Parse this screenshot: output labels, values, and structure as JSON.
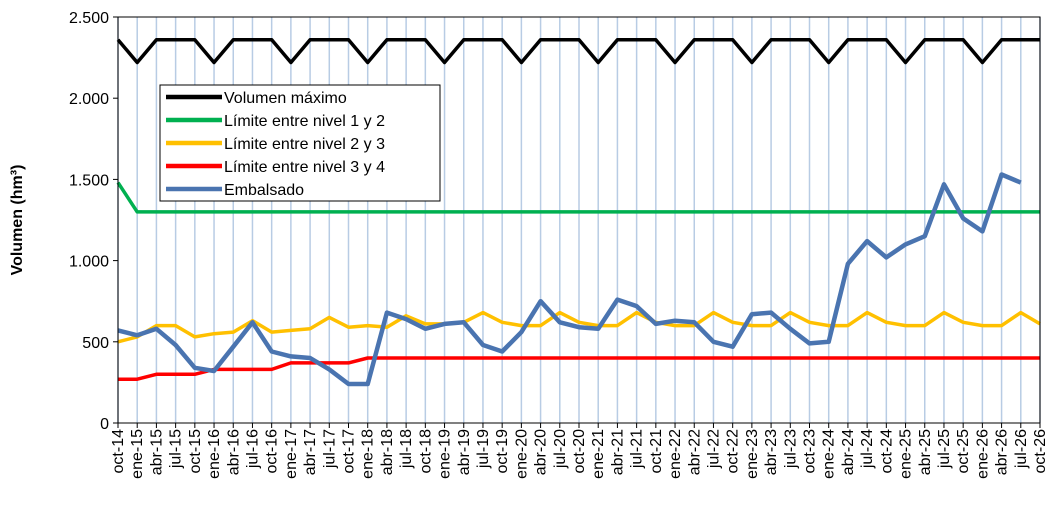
{
  "chart_data": {
    "type": "line",
    "y_label": "Volumen (hm³)",
    "categories": [
      "oct-14",
      "ene-15",
      "abr-15",
      "jul-15",
      "oct-15",
      "ene-16",
      "abr-16",
      "jul-16",
      "oct-16",
      "ene-17",
      "abr-17",
      "jul-17",
      "oct-17",
      "ene-18",
      "abr-18",
      "jul-18",
      "oct-18",
      "ene-19",
      "abr-19",
      "jul-19",
      "oct-19",
      "ene-20",
      "abr-20",
      "jul-20",
      "oct-20",
      "ene-21",
      "abr-21",
      "jul-21",
      "oct-21",
      "ene-22",
      "abr-22",
      "jul-22",
      "oct-22",
      "ene-23",
      "abr-23",
      "jul-23",
      "oct-23",
      "ene-24",
      "abr-24",
      "jul-24",
      "oct-24",
      "ene-25",
      "abr-25",
      "jul-25",
      "oct-25",
      "ene-26",
      "abr-26",
      "jul-26",
      "oct-26"
    ],
    "series": [
      {
        "name": "Volumen máximo",
        "color": "#000000",
        "values": [
          2360,
          2220,
          2360,
          2360,
          2360,
          2220,
          2360,
          2360,
          2360,
          2220,
          2360,
          2360,
          2360,
          2220,
          2360,
          2360,
          2360,
          2220,
          2360,
          2360,
          2360,
          2220,
          2360,
          2360,
          2360,
          2220,
          2360,
          2360,
          2360,
          2220,
          2360,
          2360,
          2360,
          2220,
          2360,
          2360,
          2360,
          2220,
          2360,
          2360,
          2360,
          2220,
          2360,
          2360,
          2360,
          2220,
          2360,
          2360,
          2360
        ]
      },
      {
        "name": "Límite entre nivel 1 y 2",
        "color": "#00b050",
        "values": [
          1480,
          1300,
          1300,
          1300,
          1300,
          1300,
          1300,
          1300,
          1300,
          1300,
          1300,
          1300,
          1300,
          1300,
          1300,
          1300,
          1300,
          1300,
          1300,
          1300,
          1300,
          1300,
          1300,
          1300,
          1300,
          1300,
          1300,
          1300,
          1300,
          1300,
          1300,
          1300,
          1300,
          1300,
          1300,
          1300,
          1300,
          1300,
          1300,
          1300,
          1300,
          1300,
          1300,
          1300,
          1300,
          1300,
          1300,
          1300,
          1300
        ]
      },
      {
        "name": "Límite entre nivel 2 y 3",
        "color": "#ffc000",
        "values": [
          500,
          530,
          600,
          600,
          530,
          550,
          560,
          630,
          560,
          570,
          580,
          650,
          590,
          600,
          590,
          660,
          610,
          610,
          620,
          680,
          620,
          600,
          600,
          680,
          620,
          600,
          600,
          680,
          620,
          600,
          600,
          680,
          620,
          600,
          600,
          680,
          620,
          600,
          600,
          680,
          620,
          600,
          600,
          680,
          620,
          600,
          600,
          680,
          610
        ]
      },
      {
        "name": "Límite entre nivel 3 y 4",
        "color": "#ff0000",
        "values": [
          270,
          270,
          300,
          300,
          300,
          330,
          330,
          330,
          330,
          370,
          370,
          370,
          370,
          400,
          400,
          400,
          400,
          400,
          400,
          400,
          400,
          400,
          400,
          400,
          400,
          400,
          400,
          400,
          400,
          400,
          400,
          400,
          400,
          400,
          400,
          400,
          400,
          400,
          400,
          400,
          400,
          400,
          400,
          400,
          400,
          400,
          400,
          400,
          400
        ]
      },
      {
        "name": "Embalsado",
        "color": "#4a74b0",
        "values": [
          570,
          540,
          580,
          480,
          340,
          320,
          470,
          620,
          440,
          410,
          400,
          330,
          240,
          240,
          680,
          640,
          580,
          610,
          620,
          480,
          440,
          560,
          750,
          620,
          590,
          580,
          760,
          720,
          610,
          630,
          620,
          500,
          470,
          670,
          680,
          580,
          490,
          500,
          980,
          1120,
          1020,
          1100,
          1150,
          1470,
          1260,
          1180,
          1530,
          1480,
          null
        ]
      }
    ],
    "ylim": [
      0,
      2500
    ],
    "yticks": [
      0,
      500,
      {
        "value": 1000,
        "label": "1.000"
      },
      {
        "value": 1500,
        "label": "1.500"
      },
      {
        "value": 2000,
        "label": "2.000"
      },
      {
        "value": 2500,
        "label": "2.500"
      }
    ],
    "grid": "x",
    "legend": "upper left"
  }
}
